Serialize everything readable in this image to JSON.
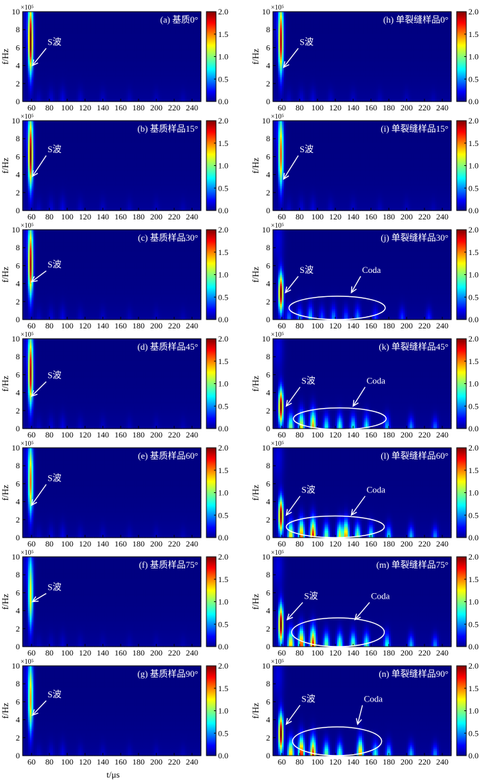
{
  "chart_data": {
    "type": "heatmap",
    "xlabel": "t/μs",
    "ylabel": "f/Hz",
    "y_scale_label": "×10⁵",
    "xlim": [
      50,
      250
    ],
    "ylim": [
      0,
      10
    ],
    "x_ticks": [
      60,
      80,
      100,
      120,
      140,
      160,
      180,
      200,
      220,
      240
    ],
    "y_ticks": [
      0,
      2,
      4,
      6,
      8,
      10
    ],
    "colorbar": {
      "range": [
        0,
        2
      ],
      "ticks": [
        "0.0",
        "0.5",
        "1.0",
        "1.5",
        "2.0"
      ],
      "colormap": "jet"
    },
    "s_wave_label": "S波",
    "coda_label": "Coda",
    "panels": [
      {
        "id": "a",
        "label": "(a) 基质0°",
        "column": 0,
        "row": 0,
        "main_freq": 6.5,
        "main_peak": 2.0,
        "main_spread": 4.5,
        "coda_level": 0.15,
        "coda_events": [
          [
            68,
            0.6
          ],
          [
            82,
            0.8
          ],
          [
            95,
            1.0
          ],
          [
            115,
            0.7
          ],
          [
            140,
            0.6
          ],
          [
            170,
            0.5
          ],
          [
            200,
            0.5
          ],
          [
            230,
            0.4
          ]
        ],
        "s_wave_text": [
          78,
          6.3
        ],
        "s_wave_arrow": [
          61,
          4.0
        ]
      },
      {
        "id": "b",
        "label": "(b) 基质样品15°",
        "column": 0,
        "row": 1,
        "main_freq": 6.0,
        "main_peak": 1.95,
        "main_spread": 4.5,
        "coda_level": 0.15,
        "coda_events": [
          [
            68,
            0.6
          ],
          [
            82,
            0.8
          ],
          [
            95,
            1.0
          ],
          [
            115,
            0.6
          ],
          [
            140,
            0.6
          ],
          [
            170,
            0.5
          ],
          [
            200,
            0.5
          ],
          [
            230,
            0.4
          ]
        ],
        "s_wave_text": [
          78,
          6.5
        ],
        "s_wave_arrow": [
          61,
          3.8
        ]
      },
      {
        "id": "c",
        "label": "(c) 基质样品30°",
        "column": 0,
        "row": 2,
        "main_freq": 6.0,
        "main_peak": 1.85,
        "main_spread": 4.5,
        "coda_level": 0.15,
        "coda_events": [
          [
            68,
            0.6
          ],
          [
            82,
            0.8
          ],
          [
            95,
            1.0
          ],
          [
            115,
            0.6
          ],
          [
            140,
            0.6
          ],
          [
            170,
            0.5
          ],
          [
            200,
            0.5
          ],
          [
            230,
            0.4
          ]
        ],
        "s_wave_text": [
          78,
          5.8
        ],
        "s_wave_arrow": [
          60,
          4.2
        ]
      },
      {
        "id": "d",
        "label": "(d) 基质样品45°",
        "column": 0,
        "row": 3,
        "main_freq": 6.0,
        "main_peak": 1.85,
        "main_spread": 4.5,
        "coda_level": 0.15,
        "coda_events": [
          [
            68,
            0.6
          ],
          [
            82,
            0.8
          ],
          [
            95,
            1.0
          ],
          [
            115,
            0.6
          ],
          [
            140,
            0.6
          ],
          [
            170,
            0.5
          ],
          [
            200,
            0.5
          ],
          [
            230,
            0.4
          ]
        ],
        "s_wave_text": [
          78,
          5.6
        ],
        "s_wave_arrow": [
          60,
          3.6
        ]
      },
      {
        "id": "e",
        "label": "(e) 基质样品60°",
        "column": 0,
        "row": 4,
        "main_freq": 6.0,
        "main_peak": 1.45,
        "main_spread": 4.5,
        "coda_level": 0.15,
        "coda_events": [
          [
            68,
            0.6
          ],
          [
            82,
            0.8
          ],
          [
            95,
            1.0
          ],
          [
            115,
            0.6
          ],
          [
            140,
            0.6
          ],
          [
            170,
            0.5
          ],
          [
            200,
            0.5
          ],
          [
            230,
            0.4
          ]
        ],
        "s_wave_text": [
          78,
          6.3
        ],
        "s_wave_arrow": [
          60,
          3.6
        ]
      },
      {
        "id": "f",
        "label": "(f) 基质样品75°",
        "column": 0,
        "row": 5,
        "main_freq": 5.5,
        "main_peak": 1.2,
        "main_spread": 4.5,
        "coda_level": 0.12,
        "coda_events": [
          [
            68,
            0.6
          ],
          [
            82,
            0.7
          ],
          [
            95,
            0.9
          ],
          [
            115,
            0.6
          ],
          [
            140,
            0.5
          ],
          [
            170,
            0.5
          ],
          [
            200,
            0.5
          ],
          [
            230,
            0.4
          ]
        ],
        "s_wave_text": [
          78,
          6.3
        ],
        "s_wave_arrow": [
          61,
          5.0
        ]
      },
      {
        "id": "g",
        "label": "(g) 基质样品90°",
        "column": 0,
        "row": 6,
        "main_freq": 6.0,
        "main_peak": 1.35,
        "main_spread": 4.5,
        "coda_level": 0.15,
        "coda_events": [
          [
            68,
            0.6
          ],
          [
            82,
            0.8
          ],
          [
            95,
            1.0
          ],
          [
            115,
            0.6
          ],
          [
            140,
            0.6
          ],
          [
            170,
            0.5
          ],
          [
            200,
            0.5
          ],
          [
            230,
            0.4
          ]
        ],
        "s_wave_text": [
          78,
          6.5
        ],
        "s_wave_arrow": [
          61,
          4.5
        ]
      },
      {
        "id": "h",
        "label": "(h) 单裂缝样品0°",
        "column": 1,
        "row": 0,
        "main_freq": 6.5,
        "main_peak": 1.8,
        "main_spread": 4.5,
        "coda_level": 0.15,
        "coda_events": [
          [
            68,
            0.6
          ],
          [
            82,
            0.8
          ],
          [
            95,
            0.9
          ],
          [
            115,
            0.6
          ],
          [
            140,
            0.6
          ],
          [
            170,
            0.5
          ],
          [
            200,
            0.5
          ],
          [
            230,
            0.4
          ]
        ],
        "s_wave_text": [
          80,
          6.3
        ],
        "s_wave_arrow": [
          62,
          3.8
        ]
      },
      {
        "id": "i",
        "label": "(i) 单裂缝样品15°",
        "column": 1,
        "row": 1,
        "main_freq": 6.0,
        "main_peak": 1.5,
        "main_spread": 4.5,
        "coda_level": 0.15,
        "coda_events": [
          [
            68,
            0.6
          ],
          [
            82,
            0.8
          ],
          [
            95,
            0.9
          ],
          [
            115,
            0.6
          ],
          [
            140,
            0.6
          ],
          [
            170,
            0.5
          ],
          [
            200,
            0.5
          ],
          [
            230,
            0.4
          ]
        ],
        "s_wave_text": [
          80,
          6.5
        ],
        "s_wave_arrow": [
          62,
          3.5
        ]
      },
      {
        "id": "j",
        "label": "(j) 单裂缝样品30°",
        "column": 1,
        "row": 2,
        "main_freq": 3.0,
        "main_peak": 2.0,
        "main_spread": 2.2,
        "coda_level": 0.55,
        "coda_events": [
          [
            68,
            0.8
          ],
          [
            80,
            0.9
          ],
          [
            92,
            1.1
          ],
          [
            105,
            0.7
          ],
          [
            118,
            0.9
          ],
          [
            132,
            0.7
          ],
          [
            145,
            0.9
          ],
          [
            165,
            0.6
          ],
          [
            195,
            0.6
          ],
          [
            225,
            0.5
          ]
        ],
        "s_wave_text": [
          80,
          5.2
        ],
        "s_wave_arrow": [
          64,
          3.0
        ],
        "coda_text": [
          150,
          5.2
        ],
        "coda_arrow": [
          138,
          3.0
        ],
        "ellipse": {
          "cx": 122,
          "cy": 1.3,
          "rx": 54,
          "ry": 1.3
        }
      },
      {
        "id": "k",
        "label": "(k) 单裂缝样品45°",
        "column": 1,
        "row": 3,
        "main_freq": 2.5,
        "main_peak": 2.0,
        "main_spread": 2.0,
        "coda_level": 0.85,
        "coda_events": [
          [
            70,
            1.2
          ],
          [
            82,
            1.5
          ],
          [
            95,
            1.7
          ],
          [
            110,
            0.9
          ],
          [
            125,
            1.0
          ],
          [
            140,
            0.9
          ],
          [
            155,
            0.9
          ],
          [
            178,
            0.7
          ],
          [
            205,
            0.6
          ],
          [
            232,
            0.5
          ]
        ],
        "s_wave_text": [
          82,
          5.0
        ],
        "s_wave_arrow": [
          65,
          2.5
        ],
        "coda_text": [
          155,
          5.0
        ],
        "coda_arrow": [
          140,
          2.5
        ],
        "ellipse": {
          "cx": 125,
          "cy": 1.1,
          "rx": 52,
          "ry": 1.2
        }
      },
      {
        "id": "l",
        "label": "(l) 单裂缝样品60°",
        "column": 1,
        "row": 4,
        "main_freq": 2.5,
        "main_peak": 2.0,
        "main_spread": 2.0,
        "coda_level": 1.0,
        "coda_events": [
          [
            70,
            1.3
          ],
          [
            82,
            1.6
          ],
          [
            95,
            1.8
          ],
          [
            110,
            1.0
          ],
          [
            125,
            1.2
          ],
          [
            132,
            1.5
          ],
          [
            145,
            1.0
          ],
          [
            160,
            0.8
          ],
          [
            180,
            0.7
          ],
          [
            205,
            0.6
          ],
          [
            232,
            0.5
          ]
        ],
        "s_wave_text": [
          82,
          5.0
        ],
        "s_wave_arrow": [
          65,
          2.5
        ],
        "coda_text": [
          155,
          5.0
        ],
        "coda_arrow": [
          138,
          2.5
        ],
        "ellipse": {
          "cx": 120,
          "cy": 1.2,
          "rx": 55,
          "ry": 1.2
        }
      },
      {
        "id": "m",
        "label": "(m) 单裂缝样品75°",
        "column": 1,
        "row": 5,
        "main_freq": 2.5,
        "main_peak": 2.0,
        "main_spread": 2.2,
        "coda_level": 1.0,
        "coda_events": [
          [
            70,
            1.4
          ],
          [
            82,
            1.7
          ],
          [
            95,
            1.8
          ],
          [
            110,
            1.0
          ],
          [
            125,
            1.0
          ],
          [
            140,
            1.0
          ],
          [
            155,
            0.9
          ],
          [
            178,
            0.8
          ],
          [
            205,
            0.6
          ],
          [
            232,
            0.5
          ]
        ],
        "s_wave_text": [
          85,
          5.3
        ],
        "s_wave_arrow": [
          66,
          3.0
        ],
        "coda_text": [
          160,
          5.3
        ],
        "coda_arrow": [
          142,
          3.0
        ],
        "ellipse": {
          "cx": 123,
          "cy": 1.6,
          "rx": 52,
          "ry": 1.6
        }
      },
      {
        "id": "n",
        "label": "(n) 单裂缝样品90°",
        "column": 1,
        "row": 6,
        "main_freq": 2.5,
        "main_peak": 2.0,
        "main_spread": 2.2,
        "coda_level": 1.0,
        "coda_events": [
          [
            70,
            1.4
          ],
          [
            82,
            1.8
          ],
          [
            95,
            1.7
          ],
          [
            110,
            1.0
          ],
          [
            125,
            0.9
          ],
          [
            148,
            1.5
          ],
          [
            165,
            0.8
          ],
          [
            180,
            0.7
          ],
          [
            205,
            0.6
          ],
          [
            232,
            0.5
          ]
        ],
        "s_wave_text": [
          82,
          6.0
        ],
        "s_wave_arrow": [
          65,
          3.5
        ],
        "coda_text": [
          152,
          6.0
        ],
        "coda_arrow": [
          145,
          3.5
        ],
        "ellipse": {
          "cx": 122,
          "cy": 1.6,
          "rx": 50,
          "ry": 1.6
        }
      }
    ]
  }
}
